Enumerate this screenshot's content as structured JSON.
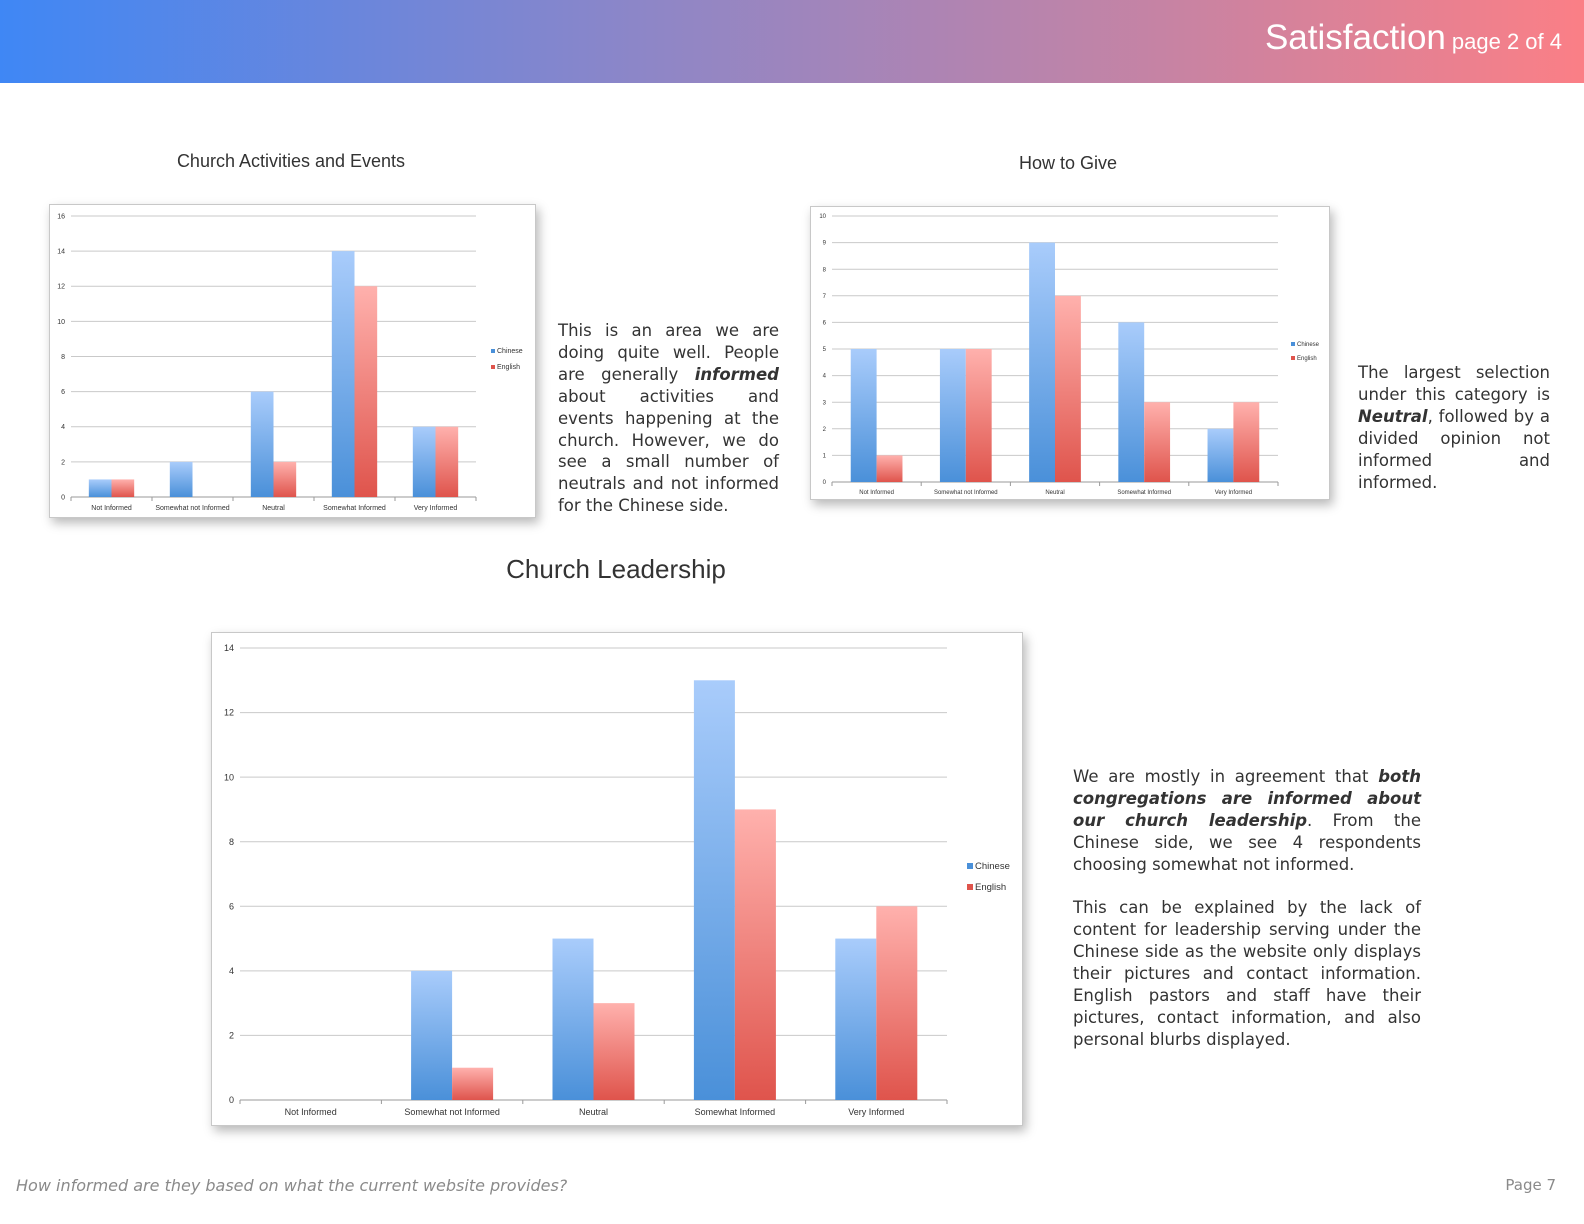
{
  "header": {
    "title": "Satisfaction",
    "subtitle": "page 2 of 4"
  },
  "colors": {
    "chinese_top": "#a9ccfb",
    "chinese_bottom": "#4a90d9",
    "english_top": "#ffb1ad",
    "english_bottom": "#df544c"
  },
  "chart_data": [
    {
      "type": "bar",
      "title": "Church Activities and Events",
      "categories": [
        "Not Informed",
        "Somewhat not Informed",
        "Neutral",
        "Somewhat Informed",
        "Very Informed"
      ],
      "series": [
        {
          "name": "Chinese",
          "values": [
            1,
            2,
            6,
            14,
            4
          ]
        },
        {
          "name": "English",
          "values": [
            1,
            0,
            2,
            12,
            4
          ]
        }
      ],
      "ylim": [
        0,
        16
      ],
      "yticks": [
        0,
        2,
        4,
        6,
        8,
        10,
        12,
        14,
        16
      ],
      "grid": true,
      "legend": "right"
    },
    {
      "type": "bar",
      "title": "How to Give",
      "categories": [
        "Not Informed",
        "Somewhat not Informed",
        "Neutral",
        "Somewhat Informed",
        "Very Informed"
      ],
      "series": [
        {
          "name": "Chinese",
          "values": [
            5,
            5,
            9,
            6,
            2
          ]
        },
        {
          "name": "English",
          "values": [
            1,
            5,
            7,
            3,
            3
          ]
        }
      ],
      "ylim": [
        0,
        10
      ],
      "yticks": [
        0,
        1,
        2,
        3,
        4,
        5,
        6,
        7,
        8,
        9,
        10
      ],
      "grid": true,
      "legend": "right"
    },
    {
      "type": "bar",
      "title": "Church Leadership",
      "categories": [
        "Not Informed",
        "Somewhat not Informed",
        "Neutral",
        "Somewhat Informed",
        "Very Informed"
      ],
      "series": [
        {
          "name": "Chinese",
          "values": [
            0,
            4,
            5,
            13,
            5
          ]
        },
        {
          "name": "English",
          "values": [
            0,
            1,
            3,
            9,
            6
          ]
        }
      ],
      "ylim": [
        0,
        14
      ],
      "yticks": [
        0,
        2,
        4,
        6,
        8,
        10,
        12,
        14
      ],
      "grid": true,
      "legend": "right"
    }
  ],
  "text": {
    "activities_html": "This is an area we are doing quite well. People are generally <b>informed</b> about activities and events happening at the church. However, we do see a small number of neutrals and not informed for the Chinese side.",
    "give_html": "The largest selection under this category is <b>Neutral</b>, followed by a divided opinion not informed and informed.",
    "leadership_p1_html": "We are mostly in agreement that <b>both congregations are informed about our church leadership</b>. From the Chinese side, we see 4 respondents choosing somewhat not informed.",
    "leadership_p2_html": "This can be explained by the lack of content for leadership serving under the Chinese side as the website only displays their pictures and contact information. English pastors and staff have their pictures, contact information, and also personal blurbs displayed."
  },
  "footer": {
    "question": "How informed are they based on what the current website provides?",
    "page": "Page 7"
  }
}
